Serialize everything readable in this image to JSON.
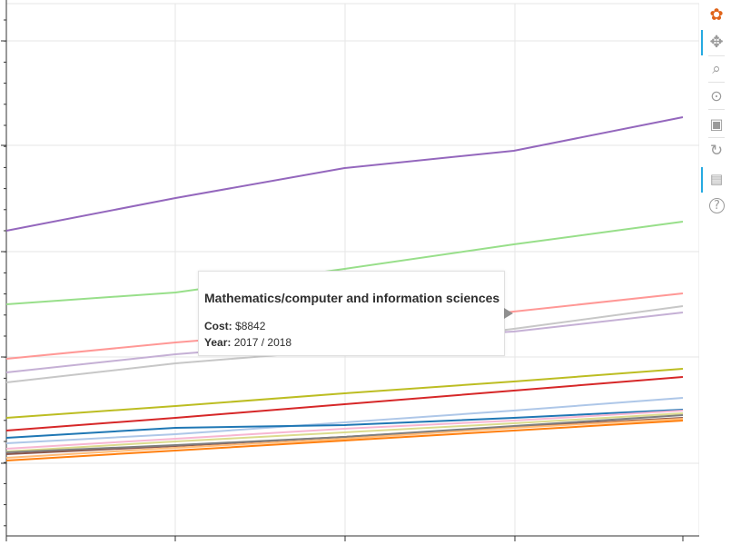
{
  "chart_data": {
    "type": "line",
    "x": [
      0,
      1,
      2,
      3,
      4
    ],
    "series": [
      {
        "color": "#9467bd",
        "values": [
          254,
          218,
          185,
          166,
          129
        ]
      },
      {
        "color": "#98df8a",
        "values": [
          335,
          322,
          296,
          269,
          244
        ]
      },
      {
        "color": "#ff9896",
        "values": [
          395,
          377,
          362,
          343,
          323
        ]
      },
      {
        "color": "#c5b0d5",
        "values": [
          410,
          390,
          375,
          365,
          344
        ]
      },
      {
        "color": "#c7c7c7",
        "values": [
          421,
          400,
          385,
          362,
          337
        ]
      },
      {
        "color": "#bcbd22",
        "values": [
          460,
          447,
          433,
          420,
          406
        ]
      },
      {
        "color": "#d62728",
        "values": [
          474,
          460,
          445,
          430,
          415
        ]
      },
      {
        "color": "#aec7e8",
        "values": [
          488,
          478,
          465,
          452,
          438
        ]
      },
      {
        "color": "#1f77b4",
        "values": [
          482,
          471,
          468,
          460,
          451
        ]
      },
      {
        "color": "#f7b6d2",
        "values": [
          494,
          483,
          472,
          463,
          452
        ]
      },
      {
        "color": "#dbdb8d",
        "values": [
          497,
          486,
          476,
          466,
          455
        ]
      },
      {
        "color": "#8c564b",
        "values": [
          500,
          491,
          481,
          470,
          460
        ]
      },
      {
        "color": "#7f7f7f",
        "values": [
          498,
          490,
          481,
          469,
          457
        ]
      },
      {
        "color": "#ffbb78",
        "values": [
          504,
          493,
          483,
          471,
          461
        ]
      },
      {
        "color": "#ff7f0e",
        "values": [
          507,
          496,
          485,
          474,
          463
        ]
      }
    ],
    "ylim": [
      580,
      0
    ],
    "grid": true,
    "legend": "none"
  },
  "tooltip": {
    "title": "Mathematics/computer and information sciences",
    "cost_label": "Cost:",
    "cost_value": "$8842",
    "year_label": "Year:",
    "year_value": "2017 / 2018"
  },
  "toolbar": {
    "tools": [
      {
        "name": "bokeh-logo-icon",
        "glyph": "✿"
      },
      {
        "name": "pan-icon",
        "glyph": "✥"
      },
      {
        "name": "box-zoom-icon",
        "glyph": "⌕"
      },
      {
        "name": "wheel-zoom-icon",
        "glyph": "⊙"
      },
      {
        "name": "save-icon",
        "glyph": "▣"
      },
      {
        "name": "reset-icon",
        "glyph": "↻"
      },
      {
        "name": "hover-icon",
        "glyph": "▤"
      },
      {
        "name": "help-icon",
        "glyph": "?"
      }
    ]
  }
}
